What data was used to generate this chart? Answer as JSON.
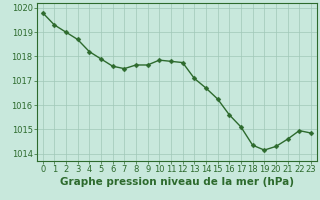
{
  "x": [
    0,
    1,
    2,
    3,
    4,
    5,
    6,
    7,
    8,
    9,
    10,
    11,
    12,
    13,
    14,
    15,
    16,
    17,
    18,
    19,
    20,
    21,
    22,
    23
  ],
  "y": [
    1019.8,
    1019.3,
    1019.0,
    1018.7,
    1018.2,
    1017.9,
    1017.6,
    1017.5,
    1017.65,
    1017.65,
    1017.85,
    1017.8,
    1017.75,
    1017.1,
    1016.7,
    1016.25,
    1015.6,
    1015.1,
    1014.35,
    1014.15,
    1014.3,
    1014.6,
    1014.95,
    1014.85
  ],
  "line_color": "#2d6a2d",
  "marker": "D",
  "marker_size": 2.5,
  "bg_color": "#c8e8dc",
  "grid_color": "#a0c8b8",
  "ylim": [
    1013.7,
    1020.2
  ],
  "yticks": [
    1014,
    1015,
    1016,
    1017,
    1018,
    1019,
    1020
  ],
  "xticks": [
    0,
    1,
    2,
    3,
    4,
    5,
    6,
    7,
    8,
    9,
    10,
    11,
    12,
    13,
    14,
    15,
    16,
    17,
    18,
    19,
    20,
    21,
    22,
    23
  ],
  "xlabel": "Graphe pression niveau de la mer (hPa)",
  "xlabel_fontsize": 7.5,
  "tick_fontsize": 6.0,
  "line_width": 1.0
}
